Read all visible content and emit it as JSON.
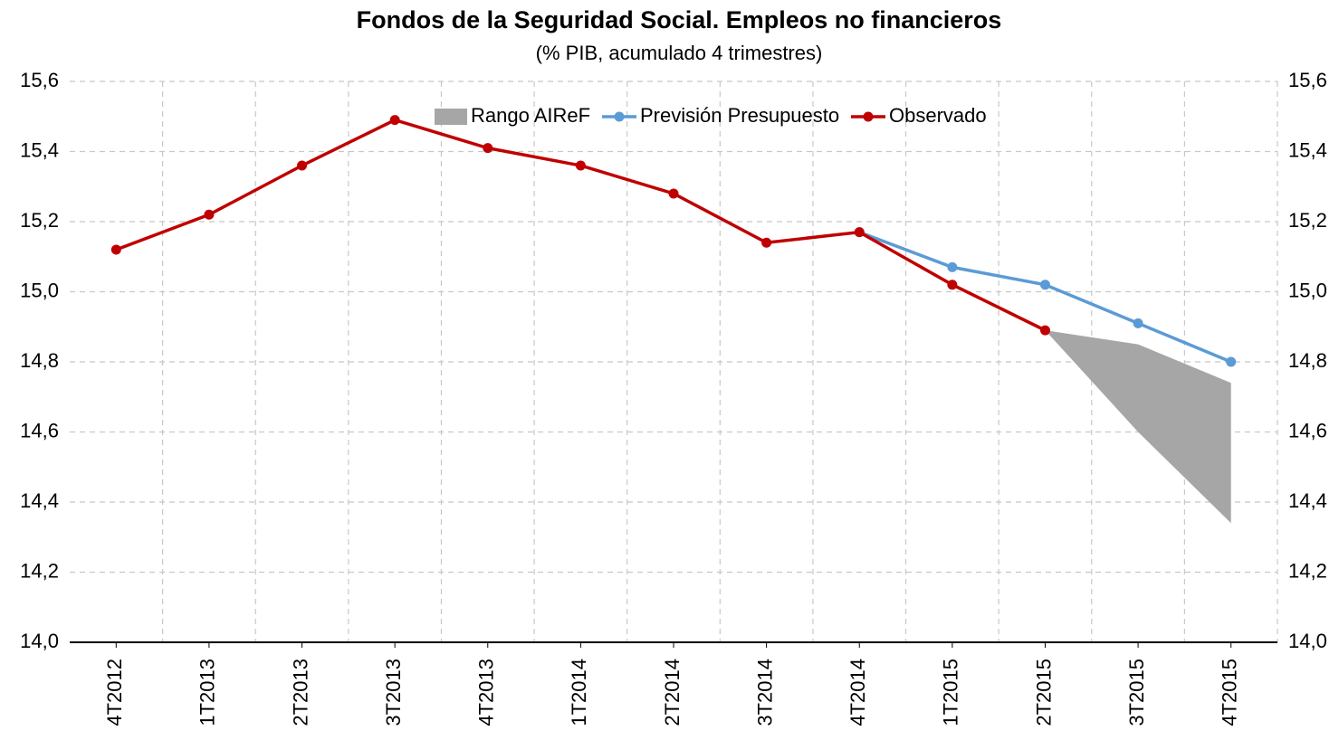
{
  "chart_data": {
    "type": "line",
    "title": "Fondos de la Seguridad Social.  Empleos no financieros",
    "subtitle": "(% PIB, acumulado 4 trimestres)",
    "categories": [
      "4T2012",
      "1T2013",
      "2T2013",
      "3T2013",
      "4T2013",
      "1T2014",
      "2T2014",
      "3T2014",
      "4T2014",
      "1T2015",
      "2T2015",
      "3T2015",
      "4T2015"
    ],
    "ylim": [
      14.0,
      15.6
    ],
    "yticks": [
      {
        "value": 14.0,
        "label": "14,0"
      },
      {
        "value": 14.2,
        "label": "14,2"
      },
      {
        "value": 14.4,
        "label": "14,4"
      },
      {
        "value": 14.6,
        "label": "14,6"
      },
      {
        "value": 14.8,
        "label": "14,8"
      },
      {
        "value": 15.0,
        "label": "15,0"
      },
      {
        "value": 15.2,
        "label": "15,2"
      },
      {
        "value": 15.4,
        "label": "15,4"
      },
      {
        "value": 15.6,
        "label": "15,6"
      }
    ],
    "grid": true,
    "band": {
      "name": "Rango AIReF",
      "color": "#a6a6a6",
      "lower": [
        null,
        null,
        null,
        null,
        null,
        null,
        null,
        null,
        null,
        null,
        14.89,
        14.6,
        14.34
      ],
      "upper": [
        null,
        null,
        null,
        null,
        null,
        null,
        null,
        null,
        null,
        null,
        14.89,
        14.85,
        14.74
      ]
    },
    "series": [
      {
        "name": "Previsión Presupuesto",
        "color": "#5b9bd5",
        "values": [
          null,
          null,
          null,
          null,
          null,
          null,
          null,
          null,
          15.17,
          15.07,
          15.02,
          14.91,
          14.8
        ]
      },
      {
        "name": "Observado",
        "color": "#c00000",
        "values": [
          15.12,
          15.22,
          15.36,
          15.49,
          15.41,
          15.36,
          15.28,
          15.14,
          15.17,
          15.02,
          14.89,
          null,
          null
        ]
      }
    ]
  }
}
